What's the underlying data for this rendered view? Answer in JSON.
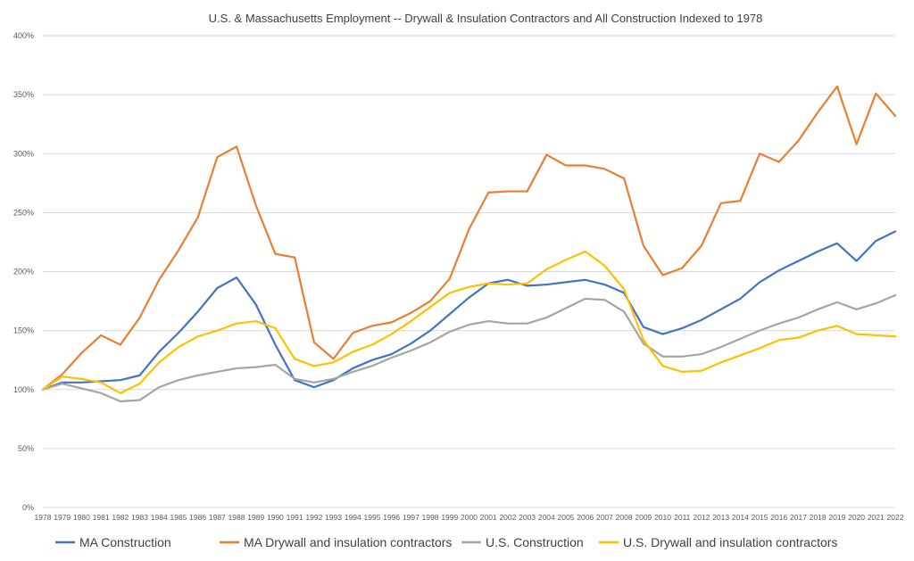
{
  "chart_data": {
    "type": "line",
    "title": "U.S. & Massachusetts Employment -- Drywall & Insulation Contractors and  All Construction Indexed to 1978",
    "xlabel": "",
    "ylabel": "",
    "ylim": [
      0,
      400
    ],
    "y_ticks": [
      0,
      50,
      100,
      150,
      200,
      250,
      300,
      350,
      400
    ],
    "y_tick_labels": [
      "0%",
      "50%",
      "100%",
      "150%",
      "200%",
      "250%",
      "300%",
      "350%",
      "400%"
    ],
    "grid": true,
    "legend_position": "bottom",
    "categories": [
      "1978",
      "1979",
      "1980",
      "1981",
      "1982",
      "1983",
      "1984",
      "1985",
      "1986",
      "1987",
      "1988",
      "1989",
      "1990",
      "1991",
      "1992",
      "1993",
      "1994",
      "1995",
      "1996",
      "1997",
      "1998",
      "1999",
      "2000",
      "2001",
      "2002",
      "2003",
      "2004",
      "2005",
      "2006",
      "2007",
      "2008",
      "2009",
      "2010",
      "2011",
      "2012",
      "2013",
      "2014",
      "2015",
      "2016",
      "2017",
      "2018",
      "2019",
      "2020",
      "2021",
      "2022"
    ],
    "series": [
      {
        "name": "MA Construction",
        "color": "#4472c4",
        "values": [
          100,
          106,
          106,
          107,
          108,
          112,
          132,
          148,
          166,
          186,
          195,
          172,
          138,
          108,
          102,
          108,
          118,
          125,
          130,
          139,
          150,
          164,
          178,
          190,
          193,
          188,
          189,
          191,
          193,
          189,
          182,
          153,
          147,
          152,
          159,
          168,
          177,
          191,
          201,
          209,
          217,
          224,
          209,
          226,
          234
        ]
      },
      {
        "name": "MA Drywall and insulation contractors",
        "color": "#ed7d31",
        "values": [
          100,
          113,
          131,
          146,
          138,
          161,
          193,
          218,
          246,
          297,
          306,
          256,
          215,
          212,
          140,
          126,
          148,
          154,
          157,
          165,
          175,
          194,
          236,
          267,
          268,
          268,
          299,
          290,
          290,
          287,
          279,
          222,
          197,
          203,
          222,
          258,
          260,
          300,
          293,
          311,
          335,
          357,
          308,
          351,
          332
        ]
      },
      {
        "name": "U.S. Construction",
        "color": "#a5a5a5",
        "values": [
          100,
          105,
          101,
          97,
          90,
          91,
          102,
          108,
          112,
          115,
          118,
          119,
          121,
          109,
          106,
          109,
          115,
          120,
          127,
          133,
          140,
          149,
          155,
          158,
          156,
          156,
          161,
          169,
          177,
          176,
          166,
          139,
          128,
          128,
          130,
          136,
          143,
          150,
          156,
          161,
          168,
          174,
          168,
          173,
          180
        ]
      },
      {
        "name": "U.S. Drywall and insulation contractors",
        "color": "#ffc000",
        "values": [
          100,
          111,
          109,
          106,
          97,
          105,
          123,
          136,
          145,
          150,
          156,
          158,
          152,
          126,
          120,
          123,
          132,
          138,
          147,
          158,
          170,
          182,
          187,
          190,
          189,
          190,
          202,
          210,
          217,
          205,
          185,
          142,
          120,
          115,
          116,
          123,
          129,
          135,
          142,
          144,
          150,
          154,
          147,
          146,
          145
        ]
      }
    ]
  }
}
